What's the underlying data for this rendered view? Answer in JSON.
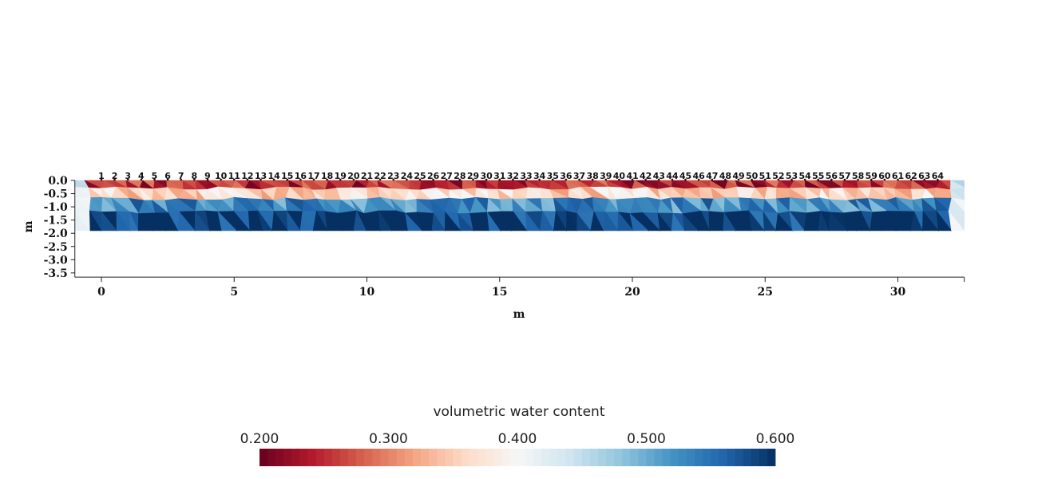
{
  "chart_data": {
    "type": "heatmap",
    "title": "",
    "xlabel": "m",
    "ylabel": "m",
    "xlim": [
      -1,
      32.5
    ],
    "ylim": [
      -3.6,
      0
    ],
    "x_ticks": [
      "0",
      "5",
      "10",
      "15",
      "20",
      "25",
      "30"
    ],
    "x_tick_values": [
      0,
      5,
      10,
      15,
      20,
      25,
      30
    ],
    "y_ticks": [
      "0.0",
      "-0.5",
      "-1.0",
      "-1.5",
      "-2.0",
      "-2.5",
      "-3.0",
      "-3.5"
    ],
    "y_tick_values": [
      0,
      -0.5,
      -1.0,
      -1.5,
      -2.0,
      -2.5,
      -3.0,
      -3.5
    ],
    "electrodes": {
      "labels": [
        "1",
        "2",
        "3",
        "4",
        "5",
        "6",
        "7",
        "8",
        "9",
        "10",
        "11",
        "12",
        "13",
        "14",
        "15",
        "16",
        "17",
        "18",
        "19",
        "20",
        "21",
        "22",
        "23",
        "24",
        "25",
        "26",
        "27",
        "28",
        "29",
        "30",
        "31",
        "32",
        "33",
        "34",
        "35",
        "36",
        "37",
        "38",
        "39",
        "40",
        "41",
        "42",
        "43",
        "44",
        "45",
        "46",
        "47",
        "48",
        "49",
        "50",
        "51",
        "52",
        "53",
        "54",
        "55",
        "56",
        "57",
        "58",
        "59",
        "60",
        "61",
        "62",
        "63",
        "64"
      ],
      "first_x": 0,
      "spacing": 0.5
    },
    "mesh": {
      "x_extent": [
        -1,
        32.5
      ],
      "depth_extent": [
        0,
        -1.9
      ],
      "layers": [
        {
          "depth_top": 0.0,
          "depth_bottom": -0.3,
          "typical_value": 0.25
        },
        {
          "depth_top": -0.3,
          "depth_bottom": -0.7,
          "typical_value": 0.36
        },
        {
          "depth_top": -0.7,
          "depth_bottom": -1.2,
          "typical_value": 0.53
        },
        {
          "depth_top": -1.2,
          "depth_bottom": -1.9,
          "typical_value": 0.59
        }
      ]
    },
    "colorbar": {
      "title": "volumetric water content",
      "range": [
        0.2,
        0.6
      ],
      "tick_labels": [
        "0.200",
        "0.300",
        "0.400",
        "0.500",
        "0.600"
      ],
      "tick_values": [
        0.2,
        0.3,
        0.4,
        0.5,
        0.6
      ],
      "colormap": "RdBu",
      "stops": [
        "#67001f",
        "#b2182b",
        "#d6604d",
        "#f4a582",
        "#fddbc7",
        "#f7f7f7",
        "#d1e5f0",
        "#92c5de",
        "#4393c3",
        "#2166ac",
        "#053061"
      ]
    },
    "legend": "bottom-center",
    "grid": false
  }
}
